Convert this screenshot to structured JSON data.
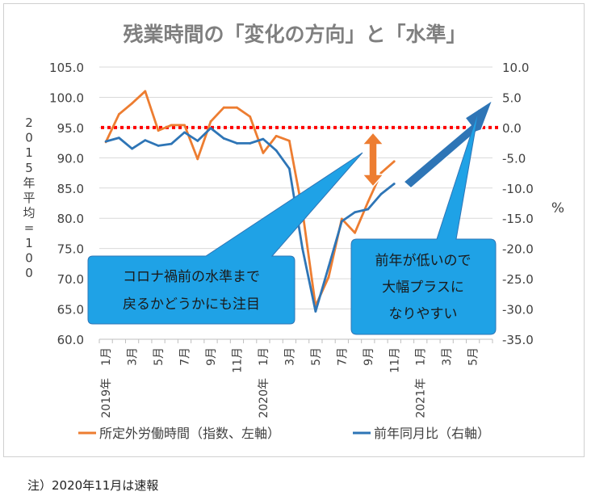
{
  "chart_data": {
    "type": "line",
    "title": "残業時間の「変化の方向」と「水準」",
    "ylabel_left": "2015年平均=100",
    "ylabel_right": "%",
    "ylim_left": [
      60,
      105
    ],
    "yticks_left": [
      "105.0",
      "100.0",
      "95.0",
      "90.0",
      "85.0",
      "80.0",
      "75.0",
      "70.0",
      "65.0",
      "60.0"
    ],
    "ylim_right": [
      -35,
      10
    ],
    "yticks_right": [
      "10.0",
      "5.0",
      "0.0",
      "-5.0",
      "-10.0",
      "-15.0",
      "-20.0",
      "-25.0",
      "-30.0",
      "-35.0"
    ],
    "x_tick_labels": [
      "1月",
      "3月",
      "5月",
      "7月",
      "9月",
      "11月",
      "1月",
      "3月",
      "5月",
      "7月",
      "9月",
      "11月",
      "1月",
      "3月",
      "5月"
    ],
    "year_labels": [
      "2019年",
      "2020年",
      "2021年"
    ],
    "series": [
      {
        "name": "所定外労働時間（指数、左軸）",
        "axis": "left",
        "color": "#ED7D31",
        "values": [
          92.6,
          97.2,
          99.0,
          101.0,
          94.5,
          95.4,
          95.4,
          89.8,
          96.0,
          98.3,
          98.3,
          96.8,
          90.8,
          93.6,
          92.8,
          81.2,
          65.5,
          70.3,
          79.9,
          77.6,
          82.7,
          87.5,
          89.4
        ]
      },
      {
        "name": "前年同月比（右軸）",
        "axis": "right",
        "color": "#2E75B6",
        "values": [
          -2.3,
          -1.7,
          -3.5,
          -2.1,
          -3.0,
          -2.7,
          -0.8,
          -2.2,
          -0.1,
          -1.8,
          -2.6,
          -2.6,
          -1.9,
          -3.8,
          -6.8,
          -20.0,
          -30.4,
          -23.0,
          -15.5,
          -14.0,
          -13.5,
          -11.0,
          -9.3
        ]
      }
    ],
    "reference_line": {
      "axis": "left",
      "value": 95.0,
      "color": "#FF0000"
    },
    "annotations": [
      {
        "text_lines": [
          "コロナ禍前の水準まで",
          "戻るかどうかにも注目"
        ]
      },
      {
        "text_lines": [
          "前年が低いので",
          "大幅プラスに",
          "なりやすい"
        ]
      }
    ],
    "legend_position": "bottom"
  },
  "footnote": "注）2020年11月は速報"
}
